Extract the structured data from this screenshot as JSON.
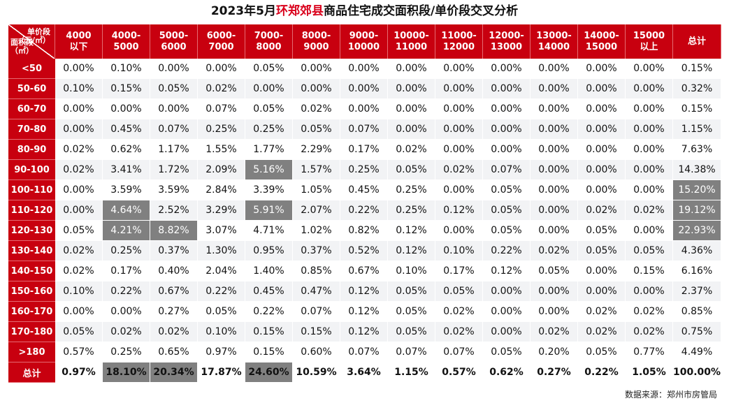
{
  "title": {
    "prefix": "2023年5月",
    "highlight": "环郑郊县",
    "suffix": "商品住宅成交面积段/单价段交叉分析"
  },
  "corner": {
    "price_label": "单价段",
    "price_unit": "（元/㎡）",
    "area_label": "面积段",
    "area_unit": "（㎡）"
  },
  "headers": [
    [
      "4000",
      "以下"
    ],
    [
      "4000-",
      "5000"
    ],
    [
      "5000-",
      "6000"
    ],
    [
      "6000-",
      "7000"
    ],
    [
      "7000-",
      "8000"
    ],
    [
      "8000-",
      "9000"
    ],
    [
      "9000-",
      "10000"
    ],
    [
      "10000-",
      "11000"
    ],
    [
      "11000-",
      "12000"
    ],
    [
      "12000-",
      "13000"
    ],
    [
      "13000-",
      "14000"
    ],
    [
      "14000-",
      "15000"
    ],
    [
      "15000",
      "以上"
    ],
    [
      "总计",
      ""
    ]
  ],
  "rows": [
    {
      "label": "<50",
      "values": [
        "0.00%",
        "0.10%",
        "0.00%",
        "0.00%",
        "0.05%",
        "0.00%",
        "0.00%",
        "0.00%",
        "0.00%",
        "0.00%",
        "0.00%",
        "0.00%",
        "0.00%",
        "0.15%"
      ]
    },
    {
      "label": "50-60",
      "values": [
        "0.10%",
        "0.15%",
        "0.05%",
        "0.02%",
        "0.00%",
        "0.00%",
        "0.00%",
        "0.00%",
        "0.00%",
        "0.00%",
        "0.00%",
        "0.00%",
        "0.00%",
        "0.32%"
      ]
    },
    {
      "label": "60-70",
      "values": [
        "0.00%",
        "0.00%",
        "0.00%",
        "0.07%",
        "0.05%",
        "0.02%",
        "0.00%",
        "0.00%",
        "0.00%",
        "0.00%",
        "0.00%",
        "0.00%",
        "0.00%",
        "0.15%"
      ]
    },
    {
      "label": "70-80",
      "values": [
        "0.00%",
        "0.45%",
        "0.07%",
        "0.25%",
        "0.25%",
        "0.05%",
        "0.07%",
        "0.00%",
        "0.00%",
        "0.00%",
        "0.00%",
        "0.00%",
        "0.00%",
        "1.15%"
      ]
    },
    {
      "label": "80-90",
      "values": [
        "0.02%",
        "0.62%",
        "1.17%",
        "1.55%",
        "1.77%",
        "2.29%",
        "0.17%",
        "0.02%",
        "0.00%",
        "0.00%",
        "0.00%",
        "0.00%",
        "0.00%",
        "7.63%"
      ]
    },
    {
      "label": "90-100",
      "values": [
        "0.02%",
        "3.41%",
        "1.72%",
        "2.09%",
        "5.16%",
        "1.57%",
        "0.25%",
        "0.05%",
        "0.02%",
        "0.07%",
        "0.00%",
        "0.00%",
        "0.00%",
        "14.38%"
      ]
    },
    {
      "label": "100-110",
      "values": [
        "0.00%",
        "3.59%",
        "3.59%",
        "2.84%",
        "3.39%",
        "1.05%",
        "0.45%",
        "0.25%",
        "0.00%",
        "0.05%",
        "0.00%",
        "0.00%",
        "0.00%",
        "15.20%"
      ]
    },
    {
      "label": "110-120",
      "values": [
        "0.00%",
        "4.64%",
        "2.52%",
        "3.29%",
        "5.91%",
        "2.07%",
        "0.22%",
        "0.25%",
        "0.12%",
        "0.05%",
        "0.00%",
        "0.02%",
        "0.02%",
        "19.12%"
      ]
    },
    {
      "label": "120-130",
      "values": [
        "0.05%",
        "4.21%",
        "8.82%",
        "3.07%",
        "4.71%",
        "1.02%",
        "0.82%",
        "0.12%",
        "0.00%",
        "0.05%",
        "0.00%",
        "0.05%",
        "0.00%",
        "22.93%"
      ]
    },
    {
      "label": "130-140",
      "values": [
        "0.02%",
        "0.25%",
        "0.37%",
        "1.30%",
        "0.95%",
        "0.37%",
        "0.52%",
        "0.12%",
        "0.10%",
        "0.22%",
        "0.02%",
        "0.05%",
        "0.05%",
        "4.36%"
      ]
    },
    {
      "label": "140-150",
      "values": [
        "0.02%",
        "0.17%",
        "0.40%",
        "2.04%",
        "1.40%",
        "0.85%",
        "0.67%",
        "0.10%",
        "0.17%",
        "0.12%",
        "0.05%",
        "0.00%",
        "0.15%",
        "6.16%"
      ]
    },
    {
      "label": "150-160",
      "values": [
        "0.10%",
        "0.22%",
        "0.67%",
        "0.22%",
        "0.45%",
        "0.47%",
        "0.12%",
        "0.05%",
        "0.05%",
        "0.00%",
        "0.00%",
        "0.00%",
        "0.00%",
        "2.37%"
      ]
    },
    {
      "label": "160-170",
      "values": [
        "0.00%",
        "0.00%",
        "0.27%",
        "0.05%",
        "0.22%",
        "0.07%",
        "0.12%",
        "0.05%",
        "0.02%",
        "0.00%",
        "0.00%",
        "0.02%",
        "0.02%",
        "0.85%"
      ]
    },
    {
      "label": "170-180",
      "values": [
        "0.05%",
        "0.02%",
        "0.02%",
        "0.10%",
        "0.15%",
        "0.15%",
        "0.12%",
        "0.05%",
        "0.02%",
        "0.00%",
        "0.02%",
        "0.02%",
        "0.02%",
        "0.75%"
      ]
    },
    {
      "label": ">180",
      "values": [
        "0.57%",
        "0.25%",
        "0.65%",
        "0.97%",
        "0.15%",
        "0.60%",
        "0.07%",
        "0.07%",
        "0.07%",
        "0.05%",
        "0.20%",
        "0.05%",
        "0.77%",
        "4.49%"
      ]
    }
  ],
  "total_row": {
    "label": "总计",
    "values": [
      "0.97%",
      "18.10%",
      "20.34%",
      "17.87%",
      "24.60%",
      "10.59%",
      "3.64%",
      "1.15%",
      "0.57%",
      "0.62%",
      "0.27%",
      "0.22%",
      "1.05%",
      "100.00%"
    ]
  },
  "highlight_color": "#808080",
  "header_color": "#c8000f",
  "title_highlight_color": "#d9001b",
  "source": "数据来源：郑州市房管局"
}
